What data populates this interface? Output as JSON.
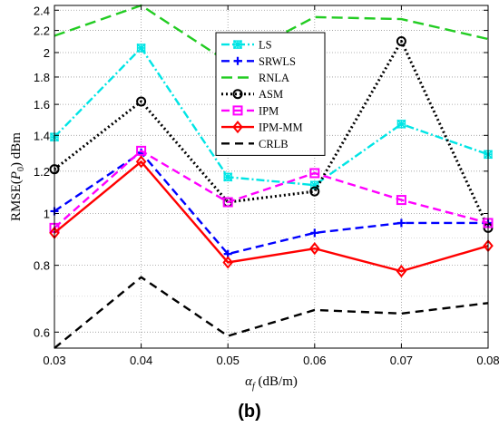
{
  "caption": "(b)",
  "chart_data": {
    "type": "line",
    "xlabel_symbol": "α",
    "xlabel_sub": "f",
    "xlabel_unit": " (dB/m)",
    "ylabel_pre": "RMSE(",
    "ylabel_sym": "P",
    "ylabel_sub": "0",
    "ylabel_post": ") dBm",
    "y_scale": "log",
    "grid": true,
    "legend_position": "top-right-inside",
    "xlim": [
      0.03,
      0.08
    ],
    "ylim": [
      0.56,
      2.45
    ],
    "xticks": [
      "0.03",
      "0.04",
      "0.05",
      "0.06",
      "0.07",
      "0.08"
    ],
    "yticks": [
      "0.6",
      "0.8",
      "1",
      "1.2",
      "1.4",
      "1.6",
      "1.8",
      "2",
      "2.2",
      "2.4"
    ],
    "x": [
      0.03,
      0.04,
      0.05,
      0.06,
      0.07,
      0.08
    ],
    "series": [
      {
        "name": "LS",
        "color": "#00e5e5",
        "dash": "9,3,2,3",
        "marker": "star-box",
        "values": [
          1.39,
          2.04,
          1.17,
          1.13,
          1.47,
          1.29
        ]
      },
      {
        "name": "SRWLS",
        "color": "#0000ff",
        "dash": "9,5",
        "marker": "plus",
        "values": [
          1.01,
          1.3,
          0.84,
          0.92,
          0.96,
          0.96
        ]
      },
      {
        "name": "RNLA",
        "color": "#22cc22",
        "dash": "12,6",
        "marker": "none",
        "values": [
          2.15,
          2.45,
          1.92,
          2.33,
          2.31,
          2.12
        ]
      },
      {
        "name": "ASM",
        "color": "#000000",
        "dash": "2,3",
        "marker": "circle",
        "values": [
          1.21,
          1.62,
          1.05,
          1.1,
          2.1,
          0.94
        ]
      },
      {
        "name": "IPM",
        "color": "#ff00ff",
        "dash": "9,5",
        "marker": "square",
        "values": [
          0.94,
          1.31,
          1.05,
          1.19,
          1.06,
          0.96
        ]
      },
      {
        "name": "IPM-MM",
        "color": "#ff0000",
        "dash": "none",
        "marker": "diamond",
        "values": [
          0.92,
          1.25,
          0.81,
          0.86,
          0.78,
          0.87
        ]
      },
      {
        "name": "CRLB",
        "color": "#000000",
        "dash": "9,6",
        "marker": "none",
        "values": [
          0.56,
          0.76,
          0.59,
          0.66,
          0.65,
          0.68
        ]
      }
    ]
  }
}
